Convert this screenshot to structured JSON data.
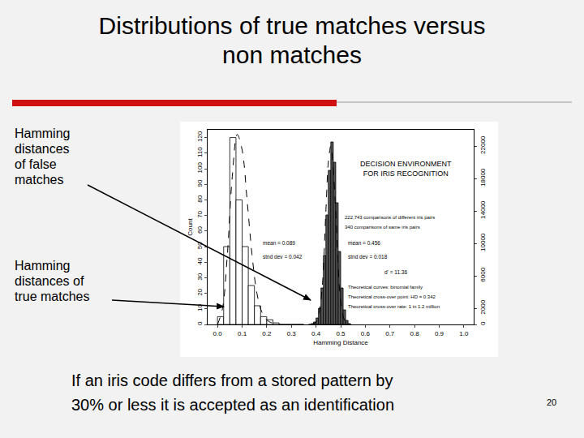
{
  "slide": {
    "title": [
      "Distributions of true matches versus",
      "non matches"
    ],
    "labels": [
      {
        "lines": [
          "Hamming",
          "distances",
          "of false",
          "matches"
        ]
      },
      {
        "lines": [
          "Hamming",
          "distances of",
          "true matches"
        ]
      }
    ],
    "caption": [
      "If an iris code differs from a stored pattern by",
      "30% or less it is accepted as an identification"
    ],
    "page": 20
  },
  "chart_data": {
    "type": "histogram",
    "x_label": "Hamming Distance",
    "y_label": "Count",
    "xlim": [
      -0.04,
      1.04
    ],
    "xticks": [
      {
        "value": 0,
        "label": "0.0"
      },
      0.1,
      0.2,
      0.3,
      0.4,
      0.5,
      0.6,
      0.7,
      0.8,
      0.9,
      {
        "value": 1,
        "label": "1.0"
      }
    ],
    "ylim": [
      0,
      125
    ],
    "yticks": [
      0,
      10,
      20,
      30,
      40,
      50,
      60,
      70,
      80,
      90,
      100,
      110,
      120
    ],
    "y2lim": [
      0,
      24000
    ],
    "y2ticks": [
      0,
      2000,
      6000,
      10000,
      14000,
      18000,
      22000
    ],
    "annotations": [
      {
        "lines": [
          "DECISION ENVIRONMENT",
          "FOR IRIS RECOGNITION"
        ]
      },
      {
        "lines": [
          "222,743 comparisons of different iris pairs"
        ]
      },
      {
        "lines": [
          "340 comparisons of same iris pairs"
        ]
      },
      {
        "lines": [
          "mean = 0.089"
        ]
      },
      {
        "lines": [
          "stnd dev = 0.042"
        ]
      },
      {
        "lines": [
          "mean = 0.456"
        ]
      },
      {
        "lines": [
          "stnd dev = 0.018"
        ]
      },
      {
        "lines": [
          "d' = 11.36"
        ]
      },
      {
        "lines": [
          "Theoretical curves: binomial family"
        ]
      },
      {
        "lines": [
          "Theoretical cross-over point: HD = 0.342"
        ]
      },
      {
        "lines": [
          "Theoretical cross-over rate: 1 in 1.2 million"
        ]
      }
    ],
    "series": [
      {
        "type": "bar",
        "color": "#ffffff",
        "bins": [
          0,
          0.025,
          0.05,
          0.075,
          0.1,
          0.125,
          0.15,
          0.175,
          0.2,
          0.225,
          0.25,
          0.275,
          0.3,
          0.325,
          0.35
        ],
        "values": [
          5,
          50,
          120,
          80,
          50,
          25,
          12,
          5,
          3,
          1,
          0,
          0,
          0,
          0
        ]
      },
      {
        "type": "bar",
        "color": "#555555",
        "axis": "y2",
        "bins": [
          0.37,
          0.38,
          0.39,
          0.4,
          0.41,
          0.42,
          0.43,
          0.44,
          0.45,
          0.46,
          0.47,
          0.48,
          0.49,
          0.5,
          0.51,
          0.52,
          0.53,
          0.54
        ],
        "values": [
          0,
          100,
          300,
          800,
          2000,
          4500,
          8500,
          13500,
          19000,
          22500,
          20000,
          15000,
          9000,
          4500,
          1800,
          500,
          100
        ]
      },
      {
        "type": "line",
        "color": "#000000",
        "line_style": "dashed",
        "x": [
          0,
          0.02,
          0.04,
          0.06,
          0.08,
          0.1,
          0.12,
          0.14,
          0.16,
          0.18,
          0.2,
          0.22,
          0.25
        ],
        "values": [
          0,
          10,
          45,
          95,
          122,
          112,
          80,
          45,
          20,
          8,
          3,
          1,
          0
        ]
      },
      {
        "type": "line",
        "color": "#000000",
        "line_style": "dashed",
        "axis": "y2",
        "x": [
          0.38,
          0.4,
          0.42,
          0.44,
          0.45,
          0.46,
          0.47,
          0.48,
          0.5,
          0.52,
          0.54
        ],
        "values": [
          0,
          300,
          3000,
          14000,
          20000,
          22000,
          19000,
          14000,
          3000,
          300,
          0
        ]
      }
    ]
  }
}
